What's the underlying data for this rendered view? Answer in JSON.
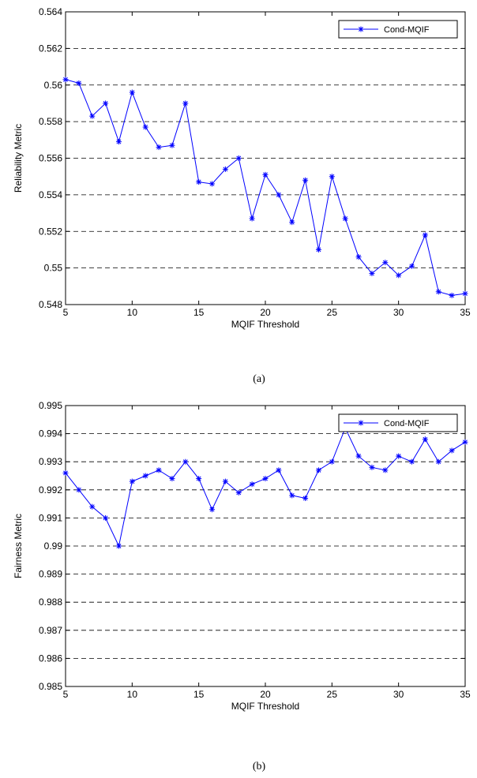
{
  "chart_data": [
    {
      "type": "line",
      "panel_caption": "(a)",
      "xlabel": "MQIF Threshold",
      "ylabel": "Reliability Metric",
      "xlim": [
        5,
        35
      ],
      "ylim": [
        0.548,
        0.564
      ],
      "xticks": [
        5,
        10,
        15,
        20,
        25,
        30,
        35
      ],
      "xtick_labels": [
        "5",
        "10",
        "15",
        "20",
        "25",
        "30",
        "35"
      ],
      "yticks": [
        0.548,
        0.55,
        0.552,
        0.554,
        0.556,
        0.558,
        0.56,
        0.562,
        0.564
      ],
      "ytick_labels": [
        "0.548",
        "0.55",
        "0.552",
        "0.554",
        "0.556",
        "0.558",
        "0.56",
        "0.562",
        "0.564"
      ],
      "grid": "horizontal dashed",
      "legend_position": "top-right",
      "color": "#0000ff",
      "series": [
        {
          "name": "Cond-MQIF",
          "x": [
            5,
            6,
            7,
            8,
            9,
            10,
            11,
            12,
            13,
            14,
            15,
            16,
            17,
            18,
            19,
            20,
            21,
            22,
            23,
            24,
            25,
            26,
            27,
            28,
            29,
            30,
            31,
            32,
            33,
            34,
            35
          ],
          "y": [
            0.5603,
            0.5601,
            0.5583,
            0.559,
            0.5569,
            0.5596,
            0.5577,
            0.5566,
            0.5567,
            0.559,
            0.5547,
            0.5546,
            0.5554,
            0.556,
            0.5527,
            0.5551,
            0.554,
            0.5525,
            0.5548,
            0.551,
            0.555,
            0.5527,
            0.5506,
            0.5497,
            0.5503,
            0.5496,
            0.5501,
            0.5518,
            0.5487,
            0.5485,
            0.5486
          ]
        }
      ]
    },
    {
      "type": "line",
      "panel_caption": "(b)",
      "xlabel": "MQIF Threshold",
      "ylabel": "Fairness Metric",
      "xlim": [
        5,
        35
      ],
      "ylim": [
        0.985,
        0.995
      ],
      "xticks": [
        5,
        10,
        15,
        20,
        25,
        30,
        35
      ],
      "xtick_labels": [
        "5",
        "10",
        "15",
        "20",
        "25",
        "30",
        "35"
      ],
      "yticks": [
        0.985,
        0.986,
        0.987,
        0.988,
        0.989,
        0.99,
        0.991,
        0.992,
        0.993,
        0.994,
        0.995
      ],
      "ytick_labels": [
        "0.985",
        "0.986",
        "0.987",
        "0.988",
        "0.989",
        "0.99",
        "0.991",
        "0.992",
        "0.993",
        "0.994",
        "0.995"
      ],
      "grid": "horizontal dashed",
      "legend_position": "top-right",
      "color": "#0000ff",
      "series": [
        {
          "name": "Cond-MQIF",
          "x": [
            5,
            6,
            7,
            8,
            9,
            10,
            11,
            12,
            13,
            14,
            15,
            16,
            17,
            18,
            19,
            20,
            21,
            22,
            23,
            24,
            25,
            26,
            27,
            28,
            29,
            30,
            31,
            32,
            33,
            34,
            35
          ],
          "y": [
            0.9926,
            0.992,
            0.9914,
            0.991,
            0.99,
            0.9923,
            0.9925,
            0.9927,
            0.9924,
            0.993,
            0.9924,
            0.9913,
            0.9923,
            0.9919,
            0.9922,
            0.9924,
            0.9927,
            0.9918,
            0.9917,
            0.9927,
            0.993,
            0.9942,
            0.9932,
            0.9928,
            0.9927,
            0.9932,
            0.993,
            0.9938,
            0.993,
            0.9934,
            0.9937
          ]
        }
      ]
    }
  ]
}
